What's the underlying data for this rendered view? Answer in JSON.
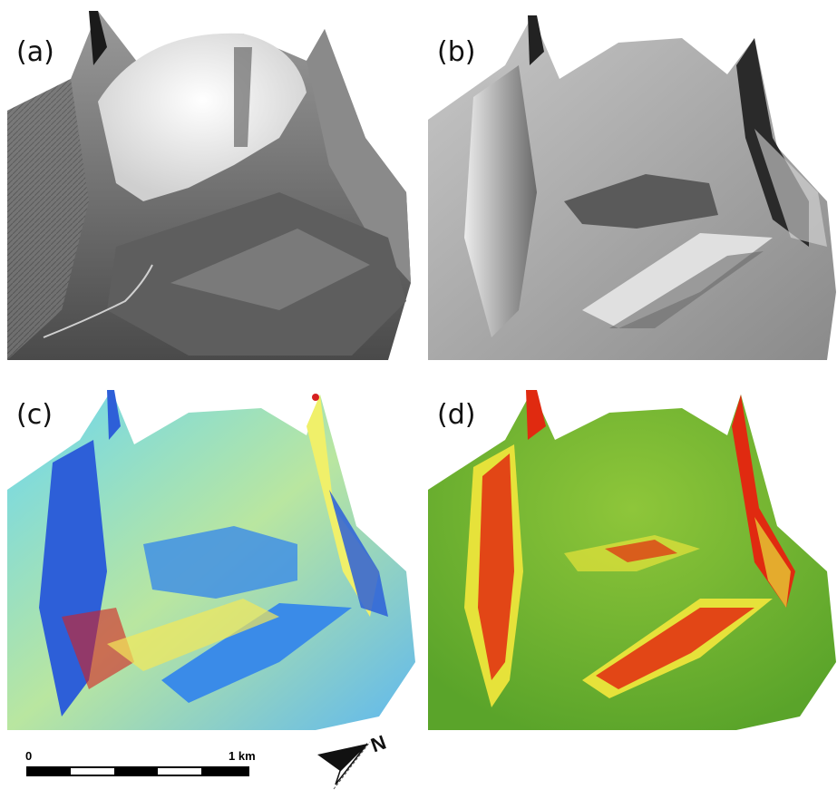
{
  "panels": [
    {
      "label": "(a)",
      "name": "orthophoto-drape"
    },
    {
      "label": "(b)",
      "name": "hillshade"
    },
    {
      "label": "(c)",
      "name": "aspect-map"
    },
    {
      "label": "(d)",
      "name": "slope-map"
    }
  ],
  "scale": {
    "start_label": "0",
    "end_label": "1 km"
  },
  "north": {
    "label": "N"
  },
  "colors": {
    "aspect_blue": "#2a5bd7",
    "aspect_cyan": "#5fd3f0",
    "aspect_yellow": "#f3e85a",
    "aspect_red": "#d62020",
    "slope_green": "#5aa42a",
    "slope_yellow": "#e6e23a",
    "slope_red": "#e02a10"
  }
}
